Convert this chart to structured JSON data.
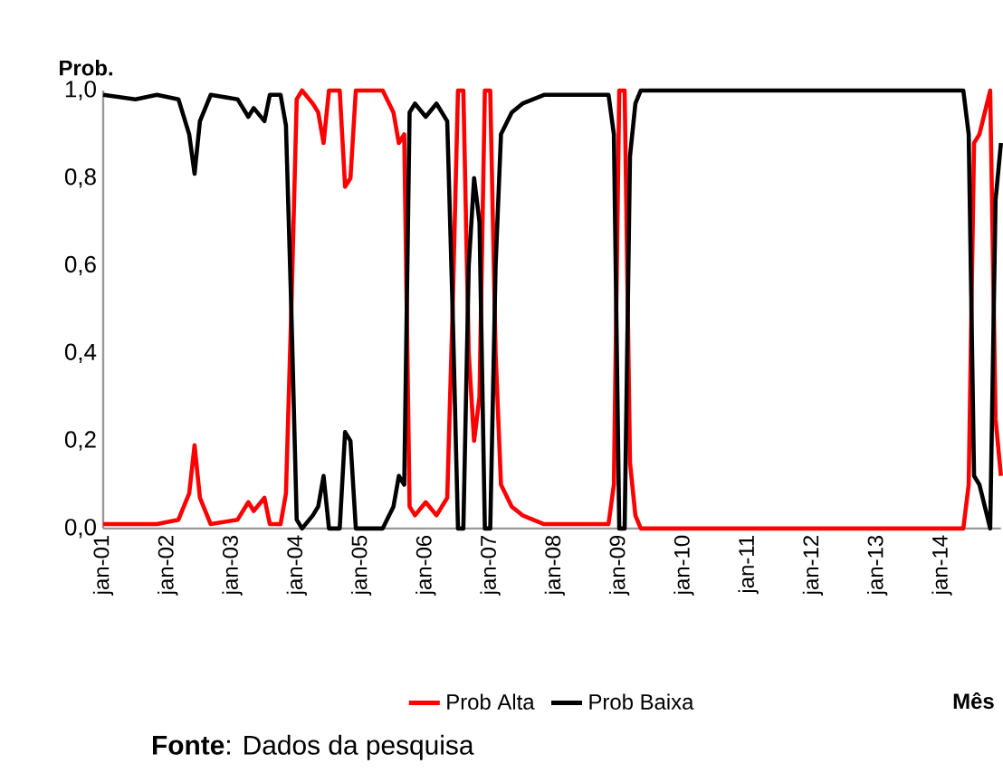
{
  "chart_data": {
    "type": "line",
    "ylabel": "Prob.",
    "xlabel": "Mês",
    "annotations": [
      "**Fonte**: Dados da pesquisa"
    ],
    "x": [
      "2001-01",
      "2001-07",
      "2001-11",
      "2002-03",
      "2002-05",
      "2002-06",
      "2002-07",
      "2002-09",
      "2003-02",
      "2003-04",
      "2003-05",
      "2003-07",
      "2003-08",
      "2003-10",
      "2003-11",
      "2003-12",
      "2004-01",
      "2004-02",
      "2004-04",
      "2004-05",
      "2004-06",
      "2004-07",
      "2004-09",
      "2004-10",
      "2004-11",
      "2004-12",
      "2005-05",
      "2005-07",
      "2005-08",
      "2005-09",
      "2005-10",
      "2005-11",
      "2006-01",
      "2006-03",
      "2006-05",
      "2006-06",
      "2006-07",
      "2006-08",
      "2006-09",
      "2006-10",
      "2006-11",
      "2006-12",
      "2007-01",
      "2007-02",
      "2007-03",
      "2007-05",
      "2007-07",
      "2007-11",
      "2008-11",
      "2008-12",
      "2009-01",
      "2009-02",
      "2009-03",
      "2009-04",
      "2009-05",
      "2014-05",
      "2014-06",
      "2014-07",
      "2014-08",
      "2014-09",
      "2014-10",
      "2014-11",
      "2014-12"
    ],
    "series": [
      {
        "name": "Prob Alta",
        "color": "#ff0000",
        "values": [
          0.01,
          0.01,
          0.01,
          0.02,
          0.08,
          0.19,
          0.07,
          0.01,
          0.02,
          0.06,
          0.04,
          0.07,
          0.01,
          0.01,
          0.08,
          0.5,
          0.98,
          1,
          0.97,
          0.95,
          0.88,
          1,
          1,
          0.78,
          0.8,
          1,
          1,
          0.95,
          0.88,
          0.9,
          0.05,
          0.03,
          0.06,
          0.03,
          0.07,
          0.5,
          1,
          1,
          0.4,
          0.2,
          0.3,
          1,
          1,
          0.4,
          0.1,
          0.05,
          0.03,
          0.01,
          0.01,
          0.1,
          1,
          1,
          0.15,
          0.03,
          0,
          0,
          0.1,
          0.88,
          0.9,
          0.95,
          1,
          0.25,
          0.12
        ]
      },
      {
        "name": "Prob Baixa",
        "color": "#000000",
        "values": [
          0.99,
          0.98,
          0.99,
          0.98,
          0.9,
          0.81,
          0.93,
          0.99,
          0.98,
          0.94,
          0.96,
          0.93,
          0.99,
          0.99,
          0.92,
          0.5,
          0.02,
          0,
          0.03,
          0.05,
          0.12,
          0,
          0,
          0.22,
          0.2,
          0,
          0,
          0.05,
          0.12,
          0.1,
          0.95,
          0.97,
          0.94,
          0.97,
          0.93,
          0.5,
          0,
          0,
          0.6,
          0.8,
          0.7,
          0,
          0,
          0.6,
          0.9,
          0.95,
          0.97,
          0.99,
          0.99,
          0.9,
          0,
          0,
          0.85,
          0.97,
          1,
          1,
          0.9,
          0.12,
          0.1,
          0.05,
          0,
          0.75,
          0.88
        ]
      }
    ],
    "xlim": [
      "2001-01",
      "2014-12"
    ],
    "xticks": [
      {
        "value": "2001-01",
        "label": "jan-01"
      },
      {
        "value": "2002-01",
        "label": "jan-02"
      },
      {
        "value": "2003-01",
        "label": "jan-03"
      },
      {
        "value": "2004-01",
        "label": "jan-04"
      },
      {
        "value": "2005-01",
        "label": "jan-05"
      },
      {
        "value": "2006-01",
        "label": "jan-06"
      },
      {
        "value": "2007-01",
        "label": "jan-07"
      },
      {
        "value": "2008-01",
        "label": "jan-08"
      },
      {
        "value": "2009-01",
        "label": "jan-09"
      },
      {
        "value": "2010-01",
        "label": "jan-10"
      },
      {
        "value": "2011-01",
        "label": "jan-11"
      },
      {
        "value": "2012-01",
        "label": "jan-12"
      },
      {
        "value": "2013-01",
        "label": "jan-13"
      },
      {
        "value": "2014-01",
        "label": "jan-14"
      }
    ],
    "ylim": [
      0,
      1
    ],
    "yticks": [
      {
        "value": 0,
        "label": "0,0"
      },
      {
        "value": 0.2,
        "label": "0,2"
      },
      {
        "value": 0.4,
        "label": "0,4"
      },
      {
        "value": 0.6,
        "label": "0,6"
      },
      {
        "value": 0.8,
        "label": "0,8"
      },
      {
        "value": 1,
        "label": "1,0"
      }
    ],
    "grid": false,
    "legend": "bottom",
    "marker": "none",
    "line_style": "solid"
  }
}
